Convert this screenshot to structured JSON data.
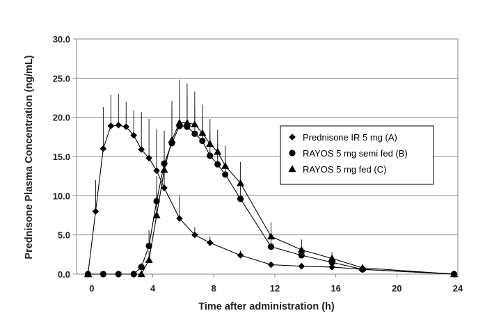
{
  "chart_data": {
    "type": "line",
    "xlabel": "Time after administration (h)",
    "ylabel": "Prednisone Plasma Concentration (ng/mL)",
    "xlim": [
      -1,
      24
    ],
    "ylim": [
      0,
      30
    ],
    "xticks": [
      0,
      4,
      8,
      12,
      16,
      20,
      24
    ],
    "yticks": [
      0,
      5,
      10,
      15,
      20,
      25,
      30
    ],
    "ytick_labels": [
      "0.0",
      "5.0",
      "10.0",
      "15.0",
      "20.0",
      "25.0",
      "30.0"
    ],
    "grid": "horizontal",
    "legend_position": "right-middle",
    "series": [
      {
        "name": "Prednisone IR  5 mg (A)",
        "marker": "diamond",
        "x": [
          -0.25,
          0.25,
          0.75,
          1.25,
          1.75,
          2.25,
          2.75,
          3.25,
          3.75,
          4.25,
          4.75,
          5.75,
          6.75,
          7.75,
          9.75,
          11.75,
          13.75,
          15.75,
          17.75,
          23.75
        ],
        "y": [
          0,
          8.0,
          16.0,
          18.9,
          19.0,
          18.8,
          17.7,
          15.9,
          14.8,
          13.2,
          11.0,
          7.1,
          5.0,
          4.0,
          2.4,
          1.2,
          1.0,
          0.9,
          0.6,
          0
        ],
        "err": [
          0,
          4.0,
          5.3,
          4.0,
          4.0,
          3.2,
          3.2,
          4.8,
          5.0,
          5.3,
          4.6,
          2.9,
          1.0,
          0.8,
          0.6,
          0.4,
          0.3,
          0.3,
          0.3,
          0.1
        ]
      },
      {
        "name": "RAYOS  5 mg semi fed (B)",
        "marker": "circle",
        "x": [
          -0.25,
          0.75,
          1.75,
          2.75,
          3.25,
          3.75,
          4.25,
          4.75,
          5.25,
          5.75,
          6.25,
          6.75,
          7.25,
          7.75,
          8.25,
          8.75,
          9.75,
          11.75,
          13.75,
          15.75,
          17.75,
          23.75
        ],
        "y": [
          0,
          0,
          0,
          0,
          0.9,
          3.6,
          9.3,
          14.1,
          16.7,
          18.9,
          18.8,
          17.9,
          17.0,
          15.1,
          14.0,
          12.7,
          9.6,
          3.5,
          2.4,
          1.5,
          0.6,
          0
        ],
        "err": [
          0,
          0,
          0,
          0,
          0.5,
          2.0,
          3.2,
          4.2,
          4.3,
          4.2,
          4.0,
          3.4,
          3.0,
          3.0,
          2.6,
          2.2,
          2.3,
          1.2,
          0.9,
          0.6,
          0.3,
          0.1
        ]
      },
      {
        "name": "RAYOS  5 mg fed (C)",
        "marker": "triangle",
        "x": [
          -0.25,
          3.25,
          3.75,
          4.25,
          4.75,
          5.25,
          5.75,
          6.25,
          6.75,
          7.25,
          7.75,
          8.25,
          8.75,
          9.75,
          11.75,
          13.75,
          15.75,
          17.75,
          23.75
        ],
        "y": [
          0,
          0,
          1.8,
          7.5,
          13.3,
          17.1,
          19.3,
          19.3,
          19.1,
          18.0,
          16.6,
          15.6,
          13.8,
          11.6,
          4.8,
          3.1,
          2.0,
          0.8,
          0
        ],
        "err": [
          0,
          0,
          1.2,
          3.0,
          4.3,
          5.0,
          5.5,
          5.0,
          4.2,
          3.6,
          3.2,
          2.8,
          2.6,
          2.7,
          1.8,
          1.3,
          0.8,
          0.4,
          0.1
        ]
      }
    ]
  }
}
